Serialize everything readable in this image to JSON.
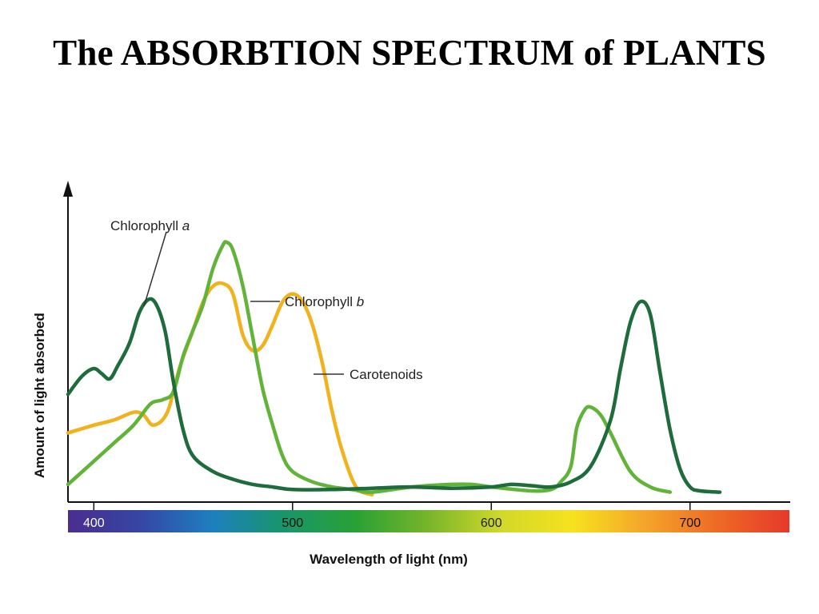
{
  "slide": {
    "title": "The ABSORBTION SPECTRUM of PLANTS"
  },
  "chart_data": {
    "type": "line",
    "title": "",
    "xlabel": "Wavelength of light (nm)",
    "ylabel": "Amount of light absorbed",
    "xlim": [
      387,
      750
    ],
    "ylim": [
      0,
      100
    ],
    "xticks": [
      400,
      500,
      600,
      700
    ],
    "xtick_labels": [
      "400",
      "500",
      "600",
      "700"
    ],
    "y_axis_ticks": false,
    "grid": false,
    "series": [
      {
        "name": "Chlorophyll a",
        "color": "#1e6b3c",
        "x": [
          387,
          394,
          400,
          404,
          408,
          412,
          418,
          423,
          428,
          432,
          436,
          440,
          445,
          450,
          460,
          470,
          480,
          490,
          500,
          520,
          540,
          560,
          580,
          600,
          610,
          620,
          630,
          640,
          650,
          660,
          665,
          670,
          675,
          680,
          685,
          690,
          695,
          700,
          705,
          715
        ],
        "y": [
          40,
          47,
          50,
          48,
          46,
          51,
          60,
          72,
          77,
          74,
          64,
          45,
          26,
          16,
          10,
          7,
          5,
          4,
          3,
          3,
          3.5,
          4,
          3.5,
          4,
          5,
          4.5,
          4,
          6,
          12,
          30,
          50,
          68,
          76,
          71,
          48,
          26,
          11,
          4,
          2.5,
          2
        ]
      },
      {
        "name": "Chlorophyll b",
        "color": "#62b33a",
        "x": [
          387,
          400,
          410,
          420,
          427,
          430,
          435,
          440,
          445,
          450,
          455,
          460,
          465,
          467,
          470,
          475,
          480,
          485,
          490,
          495,
          500,
          510,
          520,
          530,
          540,
          560,
          580,
          590,
          600,
          620,
          630,
          635,
          640,
          643,
          647,
          650,
          655,
          660,
          670,
          680,
          690
        ],
        "y": [
          5,
          14,
          21,
          28,
          35,
          37,
          38,
          41,
          55,
          65,
          75,
          89,
          98,
          99,
          96,
          82,
          62,
          42,
          28,
          16,
          10,
          6,
          4,
          3,
          2,
          4,
          5,
          5,
          4,
          2.5,
          3,
          6,
          12,
          27,
          34,
          35,
          32,
          25,
          10,
          4,
          2
        ]
      },
      {
        "name": "Carotenoids",
        "color": "#f0b21f",
        "x": [
          387,
          400,
          410,
          420,
          425,
          430,
          437,
          443,
          450,
          455,
          460,
          465,
          470,
          475,
          480,
          485,
          490,
          495,
          500,
          505,
          510,
          515,
          520,
          525,
          532,
          540
        ],
        "y": [
          25,
          28,
          30,
          33,
          32,
          28,
          33,
          50,
          65,
          76,
          82,
          83,
          79,
          63,
          57,
          59,
          67,
          76,
          79,
          76,
          67,
          52,
          33,
          18,
          4,
          1
        ]
      }
    ],
    "labels": {
      "chl_a": "Chlorophyll ",
      "chl_a_suffix": "a",
      "chl_b": "Chlorophyll ",
      "chl_b_suffix": "b",
      "carotenoids": "Carotenoids"
    },
    "color_bar": {
      "stops": [
        "#4b2d8f",
        "#3546a3",
        "#1e7fbf",
        "#18966a",
        "#2aa135",
        "#78b52a",
        "#d2d82a",
        "#f6e21e",
        "#f4a52a",
        "#ee6a25",
        "#e6392a"
      ]
    }
  }
}
